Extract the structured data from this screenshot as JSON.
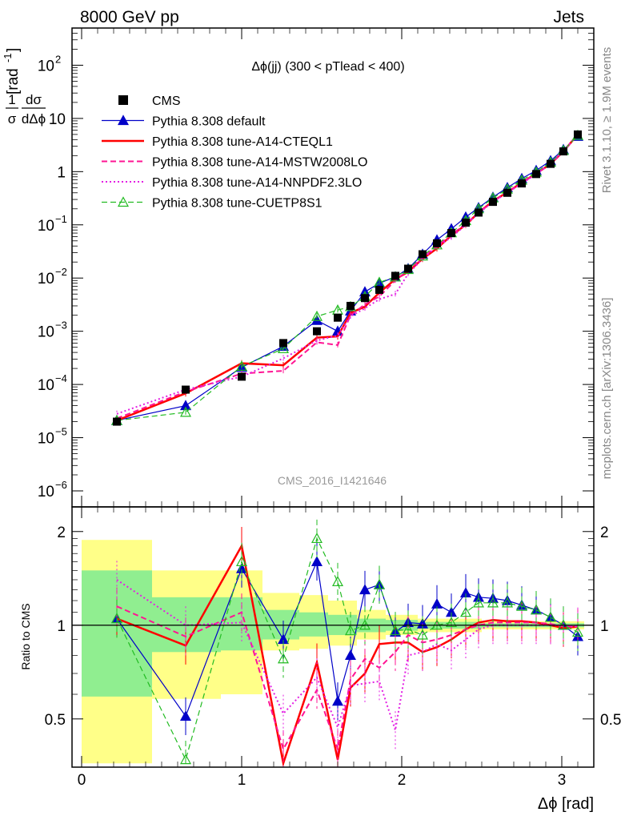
{
  "header": {
    "energy_label": "8000 GeV pp",
    "process_label": "Jets",
    "side_rivet": "Rivet 3.1.10, ≥ 1.9M events",
    "side_mcplots": "mcplots.cern.ch [arXiv:1306.3436]",
    "analysis_id": "CMS_2016_I1421646"
  },
  "chart_data": [
    {
      "type": "line",
      "panel": "main",
      "title": "Δϕ(jj) (300 < pTlead <  400)",
      "ylabel_num": "1",
      "ylabel_dsigma": "dσ",
      "ylabel_sigma": "σ",
      "ylabel_ddphi": "dΔϕ",
      "ylabel_unit": "[rad",
      "ylabel_unit_exp": "-1",
      "ylabel_unit_close": "]",
      "yscale": "log",
      "ylim": [
        5e-07,
        500
      ],
      "xlim": [
        -0.06,
        3.2
      ],
      "y_ticks": [
        {
          "value": 1e-06,
          "base": "10",
          "exp": "−6"
        },
        {
          "value": 1e-05,
          "base": "10",
          "exp": "−5"
        },
        {
          "value": 0.0001,
          "base": "10",
          "exp": "−4"
        },
        {
          "value": 0.001,
          "base": "10",
          "exp": "−3"
        },
        {
          "value": 0.01,
          "base": "10",
          "exp": "−2"
        },
        {
          "value": 0.1,
          "base": "10",
          "exp": "−1"
        },
        {
          "value": 1,
          "base": "1",
          "exp": ""
        },
        {
          "value": 10,
          "base": "10",
          "exp": ""
        },
        {
          "value": 100,
          "base": "10",
          "exp": "2"
        }
      ],
      "legend": [
        {
          "label": "CMS",
          "color": "#000000",
          "marker": "square",
          "dash": "none"
        },
        {
          "label": "Pythia 8.308 default",
          "color": "#0000c8",
          "marker": "triangle",
          "dash": "solid"
        },
        {
          "label": "Pythia 8.308 tune-A14-CTEQL1",
          "color": "#ff0000",
          "marker": "none",
          "dash": "solid"
        },
        {
          "label": "Pythia 8.308 tune-A14-MSTW2008LO",
          "color": "#ff1493",
          "marker": "none",
          "dash": "dashed"
        },
        {
          "label": "Pythia 8.308 tune-A14-NNPDF2.3LO",
          "color": "#e31fe3",
          "marker": "none",
          "dash": "dotted"
        },
        {
          "label": "Pythia 8.308 tune-CUETP8S1",
          "color": "#22bb22",
          "marker": "open-triangle",
          "dash": "dashed"
        }
      ],
      "data_x": [
        0.22,
        0.65,
        1.0,
        1.26,
        1.47,
        1.6,
        1.68,
        1.77,
        1.86,
        1.96,
        2.04,
        2.13,
        2.22,
        2.31,
        2.4,
        2.48,
        2.57,
        2.66,
        2.75,
        2.84,
        2.93,
        3.01,
        3.1
      ],
      "data_y": [
        2e-05,
        8e-05,
        0.00014,
        0.0006,
        0.001,
        0.0018,
        0.003,
        0.0042,
        0.006,
        0.011,
        0.015,
        0.028,
        0.045,
        0.07,
        0.11,
        0.17,
        0.27,
        0.4,
        0.6,
        0.9,
        1.4,
        2.4,
        5
      ],
      "series": [
        {
          "name": "Pythia 8.308 default",
          "color": "#0000c8",
          "dash": "solid",
          "marker": "triangle",
          "width": 1.2,
          "x": [
            0.22,
            0.65,
            1.0,
            1.26,
            1.47,
            1.6,
            1.68,
            1.77,
            1.86,
            1.96,
            2.04,
            2.13,
            2.22,
            2.31,
            2.4,
            2.48,
            2.57,
            2.66,
            2.75,
            2.84,
            2.93,
            3.01,
            3.1
          ],
          "y": [
            2.1e-05,
            4e-05,
            0.00021,
            0.00052,
            0.0016,
            0.001,
            0.0024,
            0.0055,
            0.008,
            0.0105,
            0.015,
            0.028,
            0.052,
            0.084,
            0.14,
            0.21,
            0.33,
            0.5,
            0.74,
            1.05,
            1.6,
            2.6,
            4.6
          ]
        },
        {
          "name": "Pythia 8.308 tune-A14-CTEQL1",
          "color": "#ff0000",
          "dash": "solid",
          "marker": "none",
          "width": 2.5,
          "x": [
            0.22,
            0.65,
            1.0,
            1.26,
            1.47,
            1.6,
            1.68,
            1.77,
            1.86,
            1.96,
            2.04,
            2.13,
            2.22,
            2.31,
            2.4,
            2.48,
            2.57,
            2.66,
            2.75,
            2.84,
            2.93,
            3.01,
            3.1
          ],
          "y": [
            2.1e-05,
            6.8e-05,
            0.00025,
            0.00023,
            0.00076,
            0.0008,
            0.0022,
            0.0029,
            0.0053,
            0.0095,
            0.013,
            0.023,
            0.036,
            0.063,
            0.1,
            0.17,
            0.28,
            0.41,
            0.62,
            0.92,
            1.4,
            2.4,
            5
          ]
        },
        {
          "name": "Pythia 8.308 tune-A14-MSTW2008LO",
          "color": "#ff1493",
          "dash": "dashed",
          "marker": "none",
          "width": 2.0,
          "x": [
            0.22,
            0.65,
            1.0,
            1.26,
            1.47,
            1.6,
            1.68,
            1.77,
            1.86,
            1.96,
            2.04,
            2.13,
            2.22,
            2.31,
            2.4,
            2.48,
            2.57,
            2.66,
            2.75,
            2.84,
            2.93,
            3.01,
            3.1
          ],
          "y": [
            2.3e-05,
            7.3e-05,
            0.00016,
            0.00018,
            0.00062,
            0.00055,
            0.002,
            0.0032,
            0.0045,
            0.009,
            0.014,
            0.024,
            0.04,
            0.065,
            0.105,
            0.17,
            0.275,
            0.41,
            0.615,
            0.92,
            1.42,
            2.4,
            5
          ]
        },
        {
          "name": "Pythia 8.308 tune-A14-NNPDF2.3LO",
          "color": "#e31fe3",
          "dash": "dotted",
          "marker": "none",
          "width": 2.0,
          "x": [
            0.22,
            0.65,
            1.0,
            1.26,
            1.47,
            1.6,
            1.68,
            1.77,
            1.86,
            1.96,
            2.04,
            2.13,
            2.22,
            2.31,
            2.4,
            2.48,
            2.57,
            2.66,
            2.75,
            2.84,
            2.93,
            3.01,
            3.1
          ],
          "y": [
            2.8e-05,
            8e-05,
            0.00014,
            0.00031,
            0.00067,
            0.00083,
            0.0019,
            0.0027,
            0.004,
            0.005,
            0.012,
            0.023,
            0.039,
            0.058,
            0.1,
            0.165,
            0.27,
            0.4,
            0.6,
            0.9,
            1.4,
            2.4,
            5
          ]
        },
        {
          "name": "Pythia 8.308 tune-CUETP8S1",
          "color": "#22bb22",
          "dash": "dashed",
          "marker": "open-triangle",
          "width": 1.2,
          "x": [
            0.22,
            0.65,
            1.0,
            1.26,
            1.47,
            1.6,
            1.68,
            1.77,
            1.86,
            1.96,
            2.04,
            2.13,
            2.22,
            2.31,
            2.4,
            2.48,
            2.57,
            2.66,
            2.75,
            2.84,
            2.93,
            3.01,
            3.1
          ],
          "y": [
            2.1e-05,
            3e-05,
            0.00022,
            0.00047,
            0.0019,
            0.0025,
            0.0029,
            0.0045,
            0.0083,
            0.0105,
            0.0145,
            0.026,
            0.042,
            0.071,
            0.12,
            0.2,
            0.32,
            0.47,
            0.69,
            0.98,
            1.5,
            2.5,
            4.8
          ]
        }
      ]
    },
    {
      "type": "line",
      "panel": "ratio",
      "ylabel": "Ratio to CMS",
      "xlabel": "Δϕ [rad]",
      "yscale": "log",
      "ylim": [
        0.35,
        2.4
      ],
      "xlim": [
        -0.06,
        3.2
      ],
      "y_ticks": [
        {
          "value": 0.5,
          "label": "0.5"
        },
        {
          "value": 1,
          "label": "1"
        },
        {
          "value": 2,
          "label": "2"
        }
      ],
      "x_ticks": [
        {
          "value": 0,
          "label": "0"
        },
        {
          "value": 1,
          "label": "1"
        },
        {
          "value": 2,
          "label": "2"
        },
        {
          "value": 3,
          "label": "3"
        }
      ],
      "bands": [
        {
          "x0": 0.0,
          "x1": 0.44,
          "yellow": [
            0.36,
            1.88
          ],
          "green": [
            0.59,
            1.5
          ]
        },
        {
          "x0": 0.44,
          "x1": 0.87,
          "yellow": [
            0.58,
            1.5
          ],
          "green": [
            0.82,
            1.23
          ]
        },
        {
          "x0": 0.87,
          "x1": 1.13,
          "yellow": [
            0.6,
            1.5
          ],
          "green": [
            0.83,
            1.23
          ]
        },
        {
          "x0": 1.13,
          "x1": 1.36,
          "yellow": [
            0.83,
            1.27
          ],
          "green": [
            0.9,
            1.12
          ]
        },
        {
          "x0": 1.36,
          "x1": 1.54,
          "yellow": [
            0.84,
            1.25
          ],
          "green": [
            0.92,
            1.1
          ]
        },
        {
          "x0": 1.54,
          "x1": 1.72,
          "yellow": [
            0.86,
            1.2
          ],
          "green": [
            0.93,
            1.08
          ]
        },
        {
          "x0": 1.72,
          "x1": 1.9,
          "yellow": [
            0.9,
            1.12
          ],
          "green": [
            0.95,
            1.05
          ]
        },
        {
          "x0": 1.9,
          "x1": 2.1,
          "yellow": [
            0.93,
            1.08
          ],
          "green": [
            0.96,
            1.04
          ]
        },
        {
          "x0": 2.1,
          "x1": 2.5,
          "yellow": [
            0.95,
            1.05
          ],
          "green": [
            0.975,
            1.025
          ]
        },
        {
          "x0": 2.5,
          "x1": 3.14,
          "yellow": [
            0.97,
            1.03
          ],
          "green": [
            0.985,
            1.015
          ]
        }
      ],
      "series": [
        {
          "name": "Pythia 8.308 default",
          "color": "#0000c8",
          "dash": "solid",
          "marker": "triangle",
          "width": 1.2,
          "x": [
            0.22,
            0.65,
            1.0,
            1.26,
            1.47,
            1.6,
            1.68,
            1.77,
            1.86,
            1.96,
            2.04,
            2.13,
            2.22,
            2.31,
            2.4,
            2.48,
            2.57,
            2.66,
            2.75,
            2.84,
            2.93,
            3.01,
            3.1
          ],
          "y": [
            1.05,
            0.51,
            1.52,
            0.9,
            1.6,
            0.57,
            0.8,
            1.3,
            1.35,
            0.95,
            1.02,
            1.01,
            1.17,
            1.1,
            1.27,
            1.23,
            1.22,
            1.2,
            1.16,
            1.12,
            1.06,
            1.0,
            0.92
          ]
        },
        {
          "name": "Pythia 8.308 tune-A14-CTEQL1",
          "color": "#ff0000",
          "dash": "solid",
          "marker": "none",
          "width": 2.5,
          "x": [
            0.22,
            0.65,
            1.0,
            1.26,
            1.47,
            1.6,
            1.68,
            1.77,
            1.86,
            1.96,
            2.04,
            2.13,
            2.22,
            2.31,
            2.4,
            2.48,
            2.57,
            2.66,
            2.75,
            2.84,
            2.93,
            3.01,
            3.1
          ],
          "y": [
            1.05,
            0.86,
            1.8,
            0.36,
            0.76,
            0.37,
            0.63,
            0.7,
            0.87,
            0.88,
            0.88,
            0.82,
            0.85,
            0.9,
            0.97,
            1.02,
            1.04,
            1.03,
            1.03,
            1.02,
            1.0,
            0.98,
            0.99
          ]
        },
        {
          "name": "Pythia 8.308 tune-A14-MSTW2008LO",
          "color": "#ff1493",
          "dash": "dashed",
          "marker": "none",
          "width": 2.0,
          "x": [
            0.22,
            0.65,
            1.0,
            1.26,
            1.47,
            1.6,
            1.68,
            1.77,
            1.86,
            1.96,
            2.04,
            2.13,
            2.22,
            2.31,
            2.4,
            2.48,
            2.57,
            2.66,
            2.75,
            2.84,
            2.93,
            3.01,
            3.1
          ],
          "y": [
            1.15,
            0.92,
            1.1,
            0.4,
            0.62,
            0.4,
            0.67,
            0.78,
            0.73,
            0.82,
            0.93,
            0.88,
            0.9,
            0.93,
            0.97,
            1.0,
            1.02,
            1.02,
            1.02,
            1.02,
            1.01,
            0.99,
            0.99
          ]
        },
        {
          "name": "Pythia 8.308 tune-A14-NNPDF2.3LO",
          "color": "#e31fe3",
          "dash": "dotted",
          "marker": "none",
          "width": 2.0,
          "x": [
            0.22,
            0.65,
            1.0,
            1.26,
            1.47,
            1.6,
            1.68,
            1.77,
            1.86,
            1.96,
            2.04,
            2.13,
            2.22,
            2.31,
            2.4,
            2.48,
            2.57,
            2.66,
            2.75,
            2.84,
            2.93,
            3.01,
            3.1
          ],
          "y": [
            1.4,
            1.0,
            1.02,
            0.52,
            0.68,
            0.47,
            0.64,
            0.65,
            0.66,
            0.46,
            0.8,
            0.82,
            0.87,
            0.83,
            0.9,
            0.97,
            1.0,
            1.0,
            1.0,
            1.0,
            1.0,
            1.0,
            0.99
          ]
        },
        {
          "name": "Pythia 8.308 tune-CUETP8S1",
          "color": "#22bb22",
          "dash": "dashed",
          "marker": "open-triangle",
          "width": 1.2,
          "x": [
            0.22,
            0.65,
            1.0,
            1.26,
            1.47,
            1.6,
            1.68,
            1.77,
            1.86,
            1.96,
            2.04,
            2.13,
            2.22,
            2.31,
            2.4,
            2.48,
            2.57,
            2.66,
            2.75,
            2.84,
            2.93,
            3.01,
            3.1
          ],
          "y": [
            1.05,
            0.37,
            1.6,
            0.78,
            1.9,
            1.38,
            0.96,
            1.0,
            1.35,
            0.96,
            0.97,
            0.93,
            1.0,
            1.02,
            1.1,
            1.18,
            1.18,
            1.18,
            1.15,
            1.12,
            1.06,
            1.0,
            0.95
          ]
        }
      ]
    }
  ]
}
